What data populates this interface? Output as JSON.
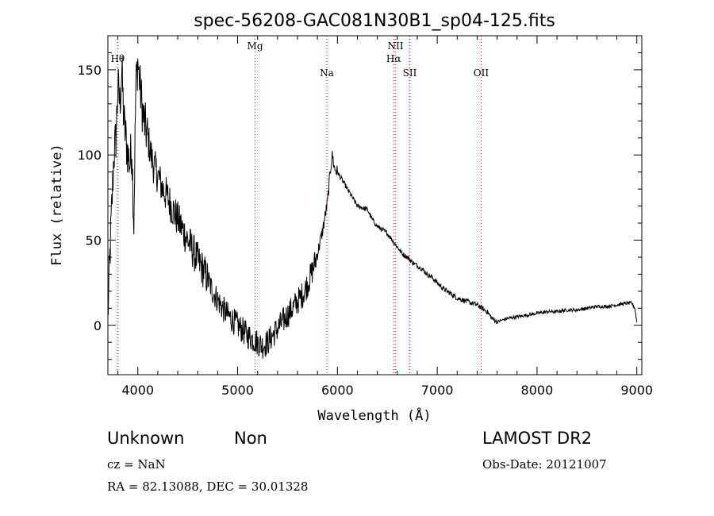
{
  "chart_data": {
    "type": "line",
    "title": "spec-56208-GAC081N30B1_sp04-125.fits",
    "xlabel": "Wavelength (Å)",
    "ylabel": "Flux (relative)",
    "xlim": [
      3700,
      9050
    ],
    "ylim": [
      -29,
      170
    ],
    "xticks": [
      4000,
      5000,
      6000,
      7000,
      8000,
      9000
    ],
    "yticks": [
      0,
      50,
      100,
      150
    ],
    "grid": false,
    "series_color": "#000000",
    "line_color": "#cc0000",
    "lines": [
      {
        "label": "Hθ",
        "x": 3798
      },
      {
        "label": "Mg",
        "x": 5175
      },
      {
        "label": "Na",
        "x": 5894
      },
      {
        "label": "NII",
        "x": 6583
      },
      {
        "label": "Hα",
        "x": 6563
      },
      {
        "label": "SII",
        "x": 6725
      },
      {
        "label": "OII",
        "x": 7440
      }
    ],
    "spectrum": [
      [
        3700,
        5
      ],
      [
        3720,
        40
      ],
      [
        3740,
        70
      ],
      [
        3760,
        100
      ],
      [
        3780,
        110
      ],
      [
        3800,
        140
      ],
      [
        3820,
        130
      ],
      [
        3840,
        150
      ],
      [
        3860,
        120
      ],
      [
        3880,
        110
      ],
      [
        3900,
        100
      ],
      [
        3920,
        95
      ],
      [
        3940,
        105
      ],
      [
        3960,
        60
      ],
      [
        3980,
        140
      ],
      [
        4000,
        155
      ],
      [
        4030,
        135
      ],
      [
        4060,
        120
      ],
      [
        4100,
        110
      ],
      [
        4150,
        95
      ],
      [
        4200,
        88
      ],
      [
        4250,
        80
      ],
      [
        4300,
        75
      ],
      [
        4350,
        68
      ],
      [
        4400,
        62
      ],
      [
        4450,
        56
      ],
      [
        4500,
        50
      ],
      [
        4550,
        44
      ],
      [
        4600,
        38
      ],
      [
        4650,
        33
      ],
      [
        4700,
        27
      ],
      [
        4750,
        20
      ],
      [
        4800,
        15
      ],
      [
        4850,
        10
      ],
      [
        4900,
        6
      ],
      [
        4950,
        3
      ],
      [
        5000,
        0
      ],
      [
        5050,
        -3
      ],
      [
        5100,
        -6
      ],
      [
        5150,
        -8
      ],
      [
        5200,
        -10
      ],
      [
        5250,
        -12
      ],
      [
        5300,
        -10
      ],
      [
        5350,
        -6
      ],
      [
        5400,
        -2
      ],
      [
        5450,
        2
      ],
      [
        5500,
        6
      ],
      [
        5550,
        10
      ],
      [
        5600,
        14
      ],
      [
        5650,
        18
      ],
      [
        5700,
        24
      ],
      [
        5750,
        32
      ],
      [
        5800,
        42
      ],
      [
        5850,
        55
      ],
      [
        5900,
        72
      ],
      [
        5930,
        92
      ],
      [
        5950,
        100
      ],
      [
        5970,
        92
      ],
      [
        6000,
        90
      ],
      [
        6050,
        85
      ],
      [
        6100,
        80
      ],
      [
        6150,
        75
      ],
      [
        6200,
        70
      ],
      [
        6250,
        69
      ],
      [
        6300,
        68
      ],
      [
        6350,
        62
      ],
      [
        6400,
        58
      ],
      [
        6450,
        56
      ],
      [
        6500,
        54
      ],
      [
        6550,
        50
      ],
      [
        6600,
        46
      ],
      [
        6650,
        42
      ],
      [
        6700,
        40
      ],
      [
        6750,
        37
      ],
      [
        6800,
        35
      ],
      [
        6850,
        33
      ],
      [
        6900,
        30
      ],
      [
        6950,
        28
      ],
      [
        7000,
        25
      ],
      [
        7050,
        22
      ],
      [
        7100,
        20
      ],
      [
        7150,
        18
      ],
      [
        7200,
        16
      ],
      [
        7250,
        15
      ],
      [
        7300,
        14
      ],
      [
        7350,
        13
      ],
      [
        7400,
        12
      ],
      [
        7450,
        10
      ],
      [
        7500,
        8
      ],
      [
        7550,
        4
      ],
      [
        7600,
        2
      ],
      [
        7650,
        3
      ],
      [
        7700,
        4
      ],
      [
        7800,
        5
      ],
      [
        7900,
        6
      ],
      [
        8000,
        7
      ],
      [
        8100,
        8
      ],
      [
        8200,
        8
      ],
      [
        8300,
        9
      ],
      [
        8400,
        9
      ],
      [
        8500,
        10
      ],
      [
        8600,
        11
      ],
      [
        8700,
        11
      ],
      [
        8800,
        12
      ],
      [
        8900,
        13
      ],
      [
        8950,
        13
      ],
      [
        8980,
        10
      ],
      [
        9000,
        2
      ]
    ]
  },
  "info": {
    "type_label": "Unknown",
    "subtype_label": "Non",
    "survey": "LAMOST DR2",
    "cz": "cz = NaN",
    "obs_date": "Obs-Date: 20121007",
    "coords": "RA =  82.13088, DEC =  30.01328"
  }
}
